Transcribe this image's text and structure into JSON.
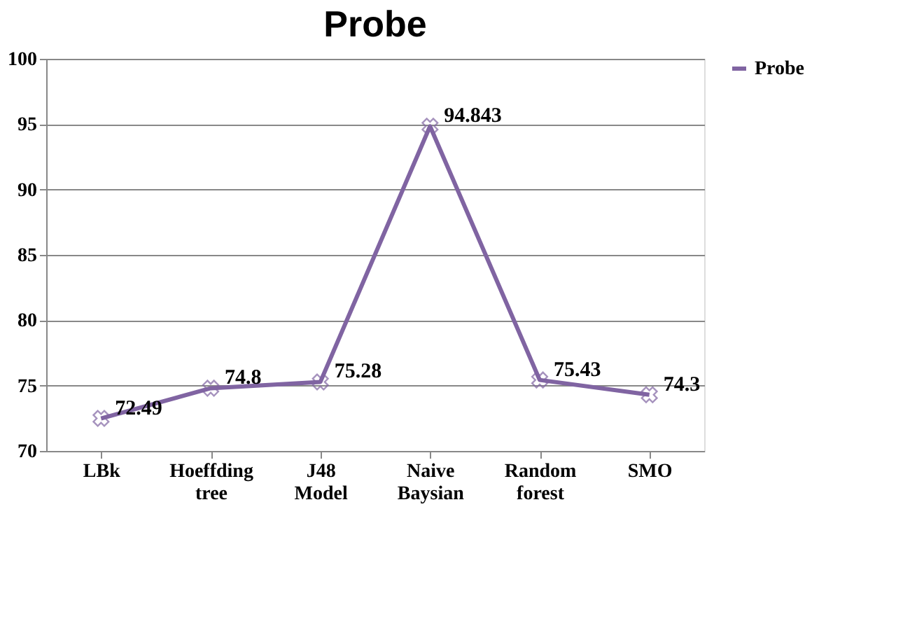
{
  "chart_data": {
    "type": "line",
    "title": "Probe",
    "categories": [
      "LBk",
      "Hoeffding tree",
      "J48 Model",
      "Naive Baysian",
      "Random forest",
      "SMO"
    ],
    "series": [
      {
        "name": "Probe",
        "color": "#8064a2",
        "values": [
          72.49,
          74.8,
          75.28,
          94.843,
          75.43,
          74.3
        ]
      }
    ],
    "ylim": [
      70,
      100
    ],
    "yticks": [
      70,
      75,
      80,
      85,
      90,
      95,
      100
    ],
    "grid": "y",
    "legend": "right",
    "marker": "cross",
    "line_style": "solid",
    "data_labels": true
  }
}
